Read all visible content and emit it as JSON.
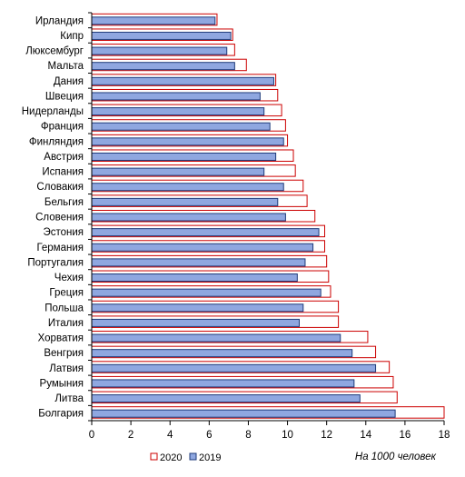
{
  "chart_data": {
    "type": "bar",
    "orientation": "horizontal",
    "categories": [
      "Ирландия",
      "Кипр",
      "Люксембург",
      "Мальта",
      "Дания",
      "Швеция",
      "Нидерланды",
      "Франция",
      "Финляндия",
      "Австрия",
      "Испания",
      "Словакия",
      "Бельгия",
      "Словения",
      "Эстония",
      "Германия",
      "Португалия",
      "Чехия",
      "Греция",
      "Польша",
      "Италия",
      "Хорватия",
      "Венгрия",
      "Латвия",
      "Румыния",
      "Литва",
      "Болгария"
    ],
    "series": [
      {
        "name": "2020",
        "color": "#cc0000",
        "fill": "#ffffff",
        "values": [
          6.4,
          7.2,
          7.3,
          7.9,
          9.4,
          9.5,
          9.7,
          9.9,
          10.0,
          10.3,
          10.4,
          10.8,
          11.0,
          11.4,
          11.9,
          11.9,
          12.0,
          12.1,
          12.2,
          12.6,
          12.6,
          14.1,
          14.5,
          15.2,
          15.4,
          15.6,
          18.0
        ]
      },
      {
        "name": "2019",
        "color": "#1f3b7a",
        "fill": "#8fa7e0",
        "values": [
          6.3,
          7.1,
          6.9,
          7.3,
          9.3,
          8.6,
          8.8,
          9.1,
          9.8,
          9.4,
          8.8,
          9.8,
          9.5,
          9.9,
          11.6,
          11.3,
          10.9,
          10.5,
          11.7,
          10.8,
          10.6,
          12.7,
          13.3,
          14.5,
          13.4,
          13.7,
          15.5
        ]
      }
    ],
    "xlim": [
      0,
      18
    ],
    "xticks": [
      "0",
      "2",
      "4",
      "6",
      "8",
      "10",
      "12",
      "14",
      "16",
      "18"
    ],
    "unit_label": "На 1000 человек",
    "grid": false,
    "legend_placement": "bottom-center"
  }
}
